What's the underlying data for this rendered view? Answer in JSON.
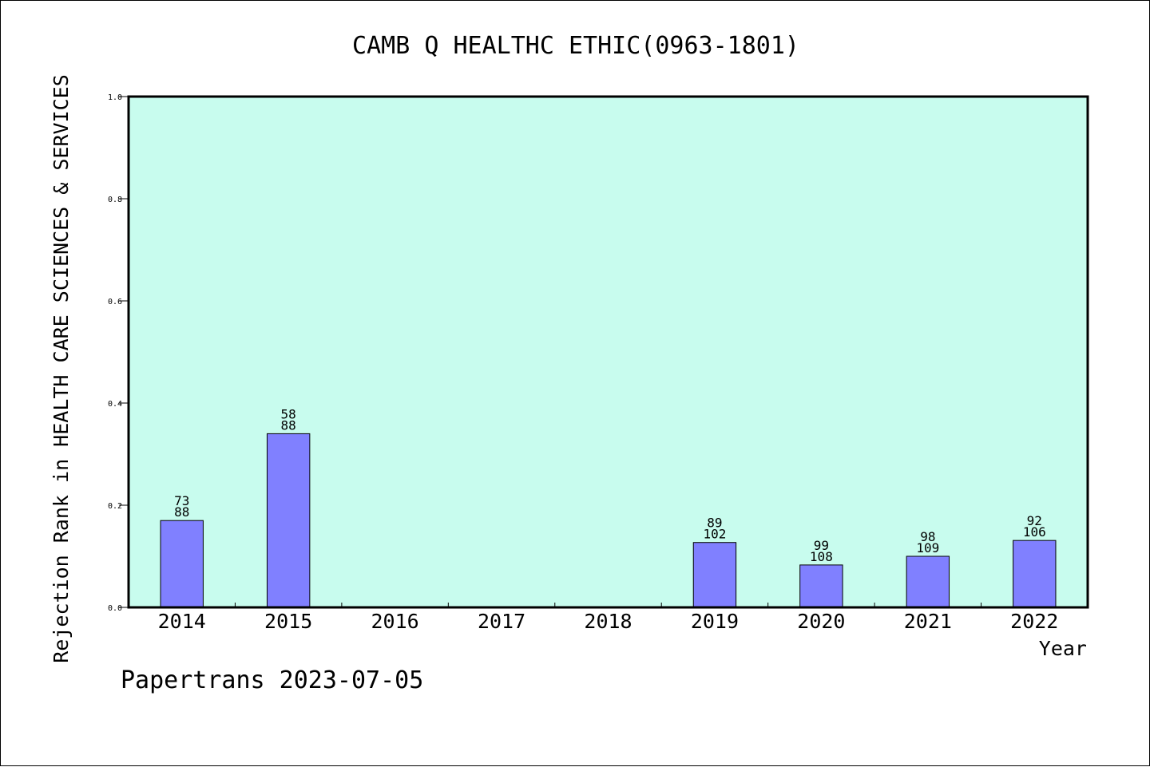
{
  "chart_data": {
    "type": "bar",
    "title": "CAMB Q HEALTHC ETHIC(0963-1801)",
    "xlabel": "Year",
    "ylabel": "Rejection Rank in HEALTH CARE SCIENCES & SERVICES",
    "ylim": [
      0,
      1.0
    ],
    "yticks": [
      "0.0",
      "0.2",
      "0.4",
      "0.6",
      "0.8",
      "1.0"
    ],
    "categories": [
      "2014",
      "2015",
      "2016",
      "2017",
      "2018",
      "2019",
      "2020",
      "2021",
      "2022"
    ],
    "values": [
      0.17,
      0.34,
      null,
      null,
      null,
      0.127,
      0.083,
      0.1,
      0.131
    ],
    "data_labels": [
      [
        "73",
        "88"
      ],
      [
        "58",
        "88"
      ],
      null,
      null,
      null,
      [
        "89",
        "102"
      ],
      [
        "99",
        "108"
      ],
      [
        "98",
        "109"
      ],
      [
        "92",
        "106"
      ]
    ],
    "colors": {
      "background": "#c8fcee",
      "bar": "#8080ff"
    },
    "grid": false
  },
  "footer": {
    "text": "Papertrans 2023-07-05"
  }
}
